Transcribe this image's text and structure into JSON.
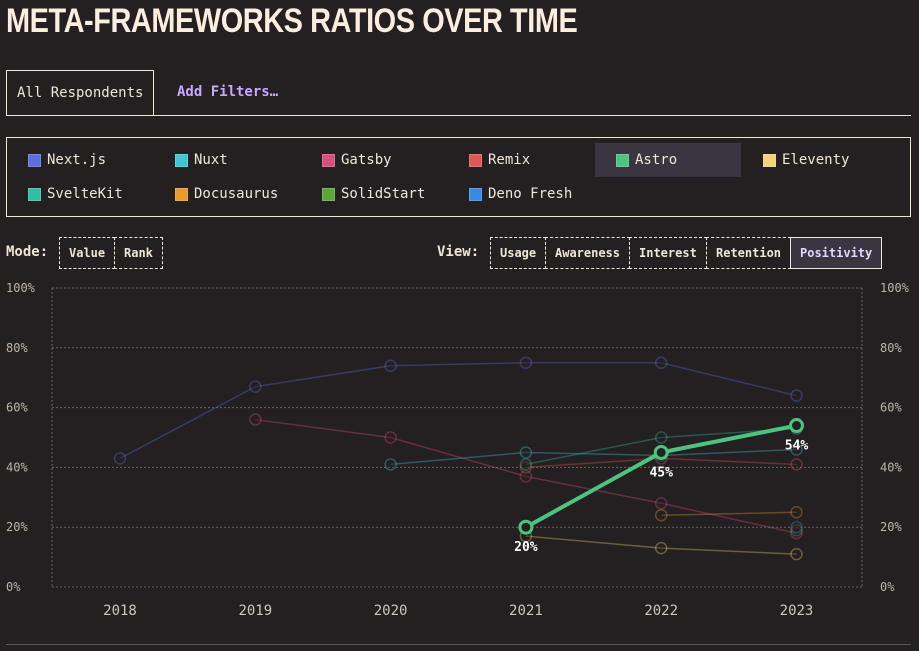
{
  "header": {
    "title": "META-FRAMEWORKS RATIOS OVER TIME"
  },
  "tabs": [
    "All Respondents",
    "Add Filters…"
  ],
  "mode": {
    "label": "Mode:",
    "options": [
      "Value",
      "Rank"
    ]
  },
  "view": {
    "label": "View:",
    "options": [
      "Usage",
      "Awareness",
      "Interest",
      "Retention",
      "Positivity"
    ]
  },
  "chart_data": {
    "type": "line",
    "categories": [
      "2018",
      "2019",
      "2020",
      "2021",
      "2022",
      "2023"
    ],
    "ylim": [
      0,
      100
    ],
    "yticks": [
      {
        "value": 0,
        "label": "0%"
      },
      {
        "value": 20,
        "label": "20%"
      },
      {
        "value": 40,
        "label": "40%"
      },
      {
        "value": 60,
        "label": "60%"
      },
      {
        "value": 80,
        "label": "80%"
      },
      {
        "value": 100,
        "label": "100%"
      }
    ],
    "grid": true,
    "series": [
      {
        "name": "Next.js",
        "color": "#5a6fe0",
        "values": [
          43,
          67,
          74,
          75,
          75,
          64
        ]
      },
      {
        "name": "Nuxt",
        "color": "#3ec6d6",
        "values": [
          null,
          null,
          41,
          45,
          44,
          46
        ]
      },
      {
        "name": "Gatsby",
        "color": "#d94f7c",
        "values": [
          null,
          56,
          50,
          37,
          28,
          18
        ]
      },
      {
        "name": "Remix",
        "color": "#e05757",
        "values": [
          null,
          null,
          null,
          40,
          43,
          41
        ]
      },
      {
        "name": "Astro",
        "color": "#4cc47f",
        "highlighted": true,
        "values": [
          null,
          null,
          null,
          20,
          45,
          54
        ],
        "value_labels": [
          null,
          null,
          null,
          "20%",
          "45%",
          "54%"
        ]
      },
      {
        "name": "Eleventy",
        "color": "#f2d27a",
        "values": [
          null,
          null,
          null,
          17,
          13,
          11
        ]
      },
      {
        "name": "SvelteKit",
        "color": "#31bfa4",
        "values": [
          null,
          null,
          null,
          41,
          50,
          53
        ]
      },
      {
        "name": "Docusaurus",
        "color": "#e89a2c",
        "values": [
          null,
          null,
          null,
          null,
          24,
          25
        ]
      },
      {
        "name": "SolidStart",
        "color": "#5aa83c",
        "values": [
          null,
          null,
          null,
          null,
          null,
          19
        ]
      },
      {
        "name": "Deno Fresh",
        "color": "#3a8be0",
        "values": [
          null,
          null,
          null,
          null,
          null,
          20
        ]
      }
    ]
  }
}
